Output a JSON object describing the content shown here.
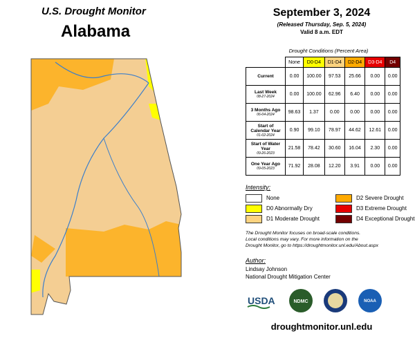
{
  "header": {
    "subtitle": "U.S. Drought Monitor",
    "title": "Alabama",
    "date": "September 3, 2024",
    "released": "(Released Thursday, Sep. 5, 2024)",
    "valid": "Valid 8 a.m. EDT"
  },
  "table": {
    "caption": "Drought Conditions (Percent Area)",
    "columns": [
      "None",
      "D0-D4",
      "D1-D4",
      "D2-D4",
      "D3-D4",
      "D4"
    ],
    "rows": [
      {
        "label": "Current",
        "values": [
          "0.00",
          "100.00",
          "97.53",
          "25.66",
          "0.00",
          "0.00"
        ]
      },
      {
        "label": "Last Week",
        "date": "08-27-2024",
        "values": [
          "0.00",
          "100.00",
          "62.96",
          "6.40",
          "0.00",
          "0.00"
        ]
      },
      {
        "label": "3 Months Ago",
        "date": "06-04-2024",
        "values": [
          "98.63",
          "1.37",
          "0.00",
          "0.00",
          "0.00",
          "0.00"
        ]
      },
      {
        "label": "Start of Calendar Year",
        "date": "01-02-2024",
        "values": [
          "0.90",
          "99.10",
          "78.97",
          "44.62",
          "12.61",
          "0.00"
        ]
      },
      {
        "label": "Start of Water Year",
        "date": "09-26-2023",
        "values": [
          "21.58",
          "78.42",
          "30.60",
          "16.04",
          "2.30",
          "0.00"
        ]
      },
      {
        "label": "One Year Ago",
        "date": "09-05-2023",
        "values": [
          "71.92",
          "28.08",
          "12.20",
          "3.91",
          "0.00",
          "0.00"
        ]
      }
    ]
  },
  "legend": {
    "title": "Intensity:",
    "items": [
      "None",
      "D0 Abnormally Dry",
      "D1 Moderate Drought",
      "D2 Severe Drought",
      "D3 Extreme Drought",
      "D4 Exceptional Drought"
    ]
  },
  "note": [
    "The Drought Monitor focuses on broad-scale conditions.",
    "Local conditions may vary. For more information on the",
    "Drought Monitor, go to https://droughtmonitor.unl.edu/About.aspx"
  ],
  "author": {
    "label": "Author:",
    "lines": [
      "Lindsay Johnson",
      "National Drought Mitigation Center"
    ]
  },
  "logos": {
    "usda": "USDA",
    "ndmc": "NDMC",
    "noaa": "NOAA"
  },
  "url": "droughtmonitor.unl.edu"
}
